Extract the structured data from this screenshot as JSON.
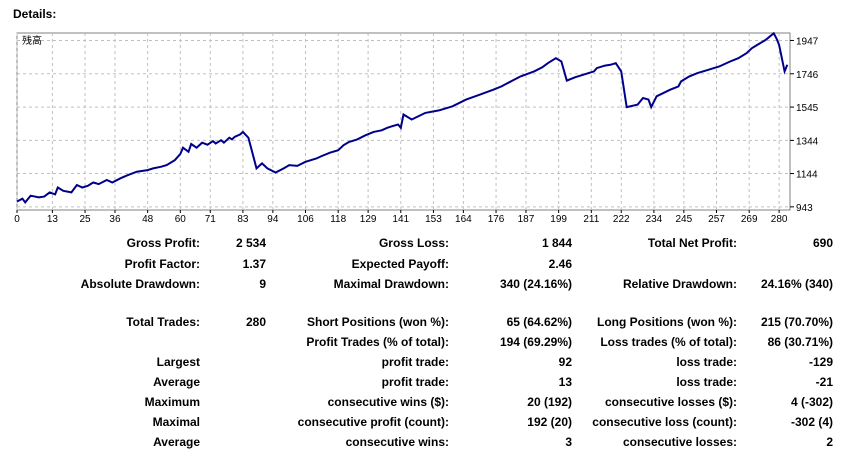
{
  "header": {
    "title": "Details:"
  },
  "chart_data": {
    "type": "line",
    "title": "",
    "legend_label": "残高",
    "xlabel": "",
    "ylabel": "",
    "x_ticks": [
      0,
      13,
      25,
      36,
      48,
      60,
      71,
      83,
      94,
      106,
      118,
      129,
      141,
      153,
      164,
      176,
      187,
      199,
      211,
      222,
      234,
      245,
      257,
      269,
      280
    ],
    "y_ticks": [
      943,
      1144,
      1344,
      1545,
      1746,
      1947
    ],
    "xlim": [
      0,
      284
    ],
    "ylim": [
      924,
      1992
    ],
    "grid": true,
    "line_color": "#00008b",
    "series": [
      {
        "x": [
          0,
          2,
          3,
          5,
          8,
          10,
          12,
          14,
          15,
          17,
          20,
          22,
          24,
          26,
          28,
          30,
          33,
          35,
          38,
          40,
          44,
          48,
          50,
          53,
          55,
          58,
          60,
          61,
          63,
          64,
          66,
          68,
          70,
          72,
          73,
          75,
          76,
          78,
          79,
          80,
          82,
          83,
          85,
          88,
          90,
          92,
          95,
          98,
          100,
          103,
          106,
          110,
          112,
          115,
          118,
          120,
          122,
          125,
          128,
          131,
          134,
          136,
          138,
          140,
          141,
          142,
          145,
          150,
          155,
          160,
          165,
          170,
          175,
          178,
          182,
          185,
          190,
          193,
          195,
          198,
          200,
          202,
          205,
          210,
          212,
          213,
          216,
          218,
          220,
          222,
          224,
          228,
          230,
          232,
          233,
          235,
          240,
          243,
          244,
          247,
          250,
          254,
          258,
          262,
          265,
          268,
          270,
          272,
          275,
          278,
          279,
          280,
          282,
          283
        ],
        "y": [
          975,
          992,
          970,
          1010,
          1000,
          1005,
          1030,
          1018,
          1060,
          1040,
          1030,
          1075,
          1060,
          1070,
          1090,
          1080,
          1105,
          1090,
          1115,
          1130,
          1155,
          1165,
          1175,
          1185,
          1195,
          1225,
          1262,
          1300,
          1275,
          1322,
          1300,
          1330,
          1318,
          1340,
          1325,
          1345,
          1330,
          1360,
          1350,
          1365,
          1380,
          1395,
          1360,
          1175,
          1205,
          1175,
          1150,
          1175,
          1195,
          1190,
          1215,
          1235,
          1250,
          1270,
          1285,
          1315,
          1335,
          1350,
          1375,
          1395,
          1405,
          1420,
          1430,
          1440,
          1420,
          1500,
          1470,
          1510,
          1525,
          1550,
          1590,
          1620,
          1650,
          1670,
          1705,
          1730,
          1760,
          1785,
          1810,
          1840,
          1820,
          1705,
          1725,
          1750,
          1760,
          1780,
          1795,
          1800,
          1810,
          1760,
          1545,
          1560,
          1600,
          1590,
          1545,
          1610,
          1650,
          1670,
          1700,
          1730,
          1750,
          1770,
          1790,
          1820,
          1840,
          1870,
          1900,
          1920,
          1950,
          1990,
          1960,
          1920,
          1760,
          1800
        ]
      }
    ]
  },
  "stats": {
    "gross_profit": {
      "label": "Gross Profit:",
      "value": "2 534"
    },
    "gross_loss": {
      "label": "Gross Loss:",
      "value": "1 844"
    },
    "total_net_profit": {
      "label": "Total Net Profit:",
      "value": "690"
    },
    "profit_factor": {
      "label": "Profit Factor:",
      "value": "1.37"
    },
    "expected_payoff": {
      "label": "Expected Payoff:",
      "value": "2.46"
    },
    "absolute_drawdown": {
      "label": "Absolute Drawdown:",
      "value": "9"
    },
    "maximal_drawdown": {
      "label": "Maximal Drawdown:",
      "value": "340 (24.16%)"
    },
    "relative_drawdown": {
      "label": "Relative Drawdown:",
      "value": "24.16% (340)"
    },
    "total_trades": {
      "label": "Total Trades:",
      "value": "280"
    },
    "short_positions": {
      "label": "Short Positions (won %):",
      "value": "65 (64.62%)"
    },
    "long_positions": {
      "label": "Long Positions (won %):",
      "value": "215 (70.70%)"
    },
    "profit_trades": {
      "label": "Profit Trades (% of total):",
      "value": "194 (69.29%)"
    },
    "loss_trades": {
      "label": "Loss trades (% of total):",
      "value": "86 (30.71%)"
    },
    "rows": [
      {
        "left": "Largest",
        "mid_label": "profit trade:",
        "mid_value": "92",
        "right_label": "loss trade:",
        "right_value": "-129"
      },
      {
        "left": "Average",
        "mid_label": "profit trade:",
        "mid_value": "13",
        "right_label": "loss trade:",
        "right_value": "-21"
      },
      {
        "left": "Maximum",
        "mid_label": "consecutive wins ($):",
        "mid_value": "20 (192)",
        "right_label": "consecutive losses ($):",
        "right_value": "4 (-302)"
      },
      {
        "left": "Maximal",
        "mid_label": "consecutive profit (count):",
        "mid_value": "192 (20)",
        "right_label": "consecutive loss (count):",
        "right_value": "-302 (4)"
      },
      {
        "left": "Average",
        "mid_label": "consecutive wins:",
        "mid_value": "3",
        "right_label": "consecutive losses:",
        "right_value": "2"
      }
    ]
  }
}
